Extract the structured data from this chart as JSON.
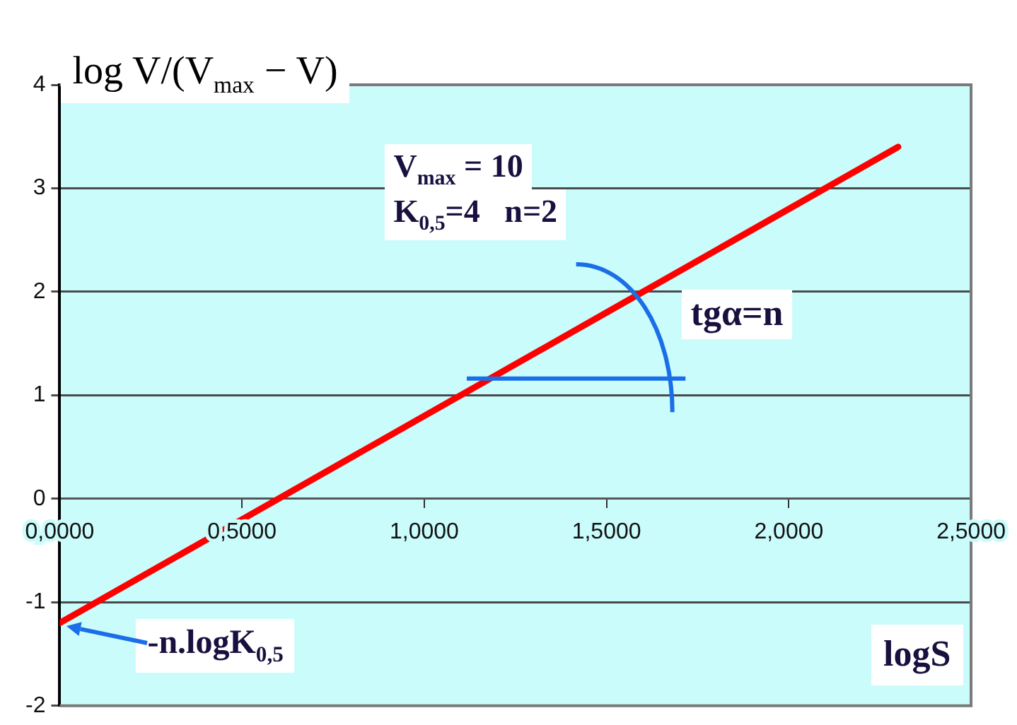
{
  "chart_data": {
    "type": "line",
    "ylabel": "log V/(V$_{max}$ − V)",
    "xlabel": "logS",
    "x": [
      0,
      0.5,
      1,
      1.5,
      2,
      2.3
    ],
    "series": [
      {
        "color": "#ff0000",
        "values": [
          -1.2,
          -0.2,
          0.8,
          1.8,
          2.8,
          3.4
        ]
      }
    ],
    "xlim": [
      0,
      2.5
    ],
    "xticks": [
      {
        "value": 0,
        "label": "0,0000"
      },
      {
        "value": 0.5,
        "label": "0,5000"
      },
      {
        "value": 1,
        "label": "1,0000"
      },
      {
        "value": 1.5,
        "label": "1,5000"
      },
      {
        "value": 2,
        "label": "2,0000"
      },
      {
        "value": 2.5,
        "label": "2,5000"
      }
    ],
    "ylim": [
      -2,
      4
    ],
    "yticks": [
      -2,
      -1,
      0,
      1,
      2,
      3,
      4
    ],
    "grid": "y",
    "legend": false,
    "marker": "none",
    "line_style": "solid",
    "annotations": [
      "V$_{max}$ = 10",
      "K$_{0,5}$=4   n=2",
      "tgα=n",
      {
        "text": "-n.logK$_{0,5}$",
        "x": 0,
        "y": -1.2
      }
    ]
  }
}
